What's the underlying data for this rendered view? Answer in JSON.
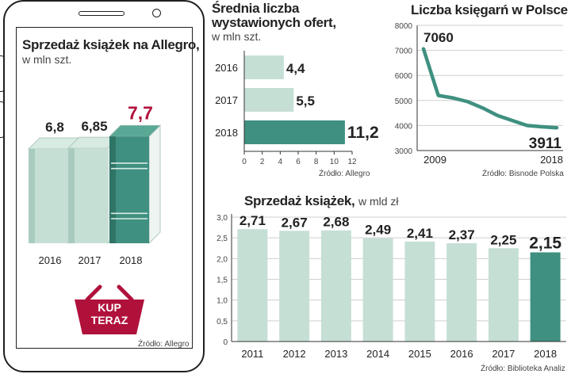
{
  "colors": {
    "teal_dark": "#3f9080",
    "teal_light": "#c6dfd5",
    "teal_line": "#3f9080",
    "accent_red": "#b0113b",
    "grid": "#cfcfcf"
  },
  "phone_panel": {
    "title": "Sprzedaż książek na Allegro,",
    "subtitle": "w mln szt.",
    "source": "Źródło: Allegro",
    "basket_line1": "KUP",
    "basket_line2": "TERAZ",
    "chart_ref": "allegro_books"
  },
  "offers_panel": {
    "title_line1": "Średnia liczba",
    "title_line2": "wystawionych ofert,",
    "subtitle": "w mln szt.",
    "source": "Źródło: Allegro"
  },
  "bookstores_panel": {
    "title": "Liczba księgarń w Polsce",
    "source": "Źródło: Bisnode Polska"
  },
  "sales_panel": {
    "title": "Sprzedaż książek,",
    "subtitle": "w mld  zł",
    "source": "Źródło: Biblioteka Analiz"
  },
  "chart_data": [
    {
      "id": "allegro_books",
      "type": "bar",
      "title": "Sprzedaż książek na Allegro, w mln szt.",
      "categories": [
        "2016",
        "2017",
        "2018"
      ],
      "values": [
        6.8,
        6.85,
        7.7
      ],
      "value_labels": [
        "6,8",
        "6,85",
        "7,7"
      ],
      "highlight_index": 2
    },
    {
      "id": "offers",
      "type": "bar",
      "orientation": "horizontal",
      "title": "Średnia liczba wystawionych ofert, w mln szt.",
      "categories": [
        "2016",
        "2017",
        "2018"
      ],
      "values": [
        4.4,
        5.5,
        11.2
      ],
      "value_labels": [
        "4,4",
        "5,5",
        "11,2"
      ],
      "xlim": [
        0,
        12
      ],
      "xticks": [
        "0",
        "2",
        "4",
        "6",
        "8",
        "10",
        "12"
      ],
      "highlight_index": 2
    },
    {
      "id": "bookstores",
      "type": "line",
      "title": "Liczba księgarń w Polsce",
      "x": [
        2009,
        2010,
        2011,
        2012,
        2013,
        2014,
        2015,
        2016,
        2017,
        2018
      ],
      "y": [
        7060,
        5200,
        5100,
        4950,
        4700,
        4400,
        4200,
        4000,
        3950,
        3911
      ],
      "ylim": [
        3000,
        8000
      ],
      "yticks": [
        "3000",
        "4000",
        "5000",
        "6000",
        "7000",
        "8000"
      ],
      "xtick_labels": [
        "2009",
        "2018"
      ],
      "annotations": [
        "7060",
        "3911"
      ],
      "grid": true
    },
    {
      "id": "sales",
      "type": "bar",
      "title": "Sprzedaż książek, w mld zł",
      "categories": [
        "2011",
        "2012",
        "2013",
        "2014",
        "2015",
        "2016",
        "2017",
        "2018"
      ],
      "values": [
        2.71,
        2.67,
        2.68,
        2.49,
        2.41,
        2.37,
        2.25,
        2.15
      ],
      "value_labels": [
        "2,71",
        "2,67",
        "2,68",
        "2,49",
        "2,41",
        "2,37",
        "2,25",
        "2,15"
      ],
      "ylim": [
        0,
        3.0
      ],
      "yticks": [
        "0",
        "0,5",
        "1,0",
        "1,5",
        "2,0",
        "2,5",
        "3,0"
      ],
      "highlight_index": 7,
      "grid": true
    }
  ]
}
